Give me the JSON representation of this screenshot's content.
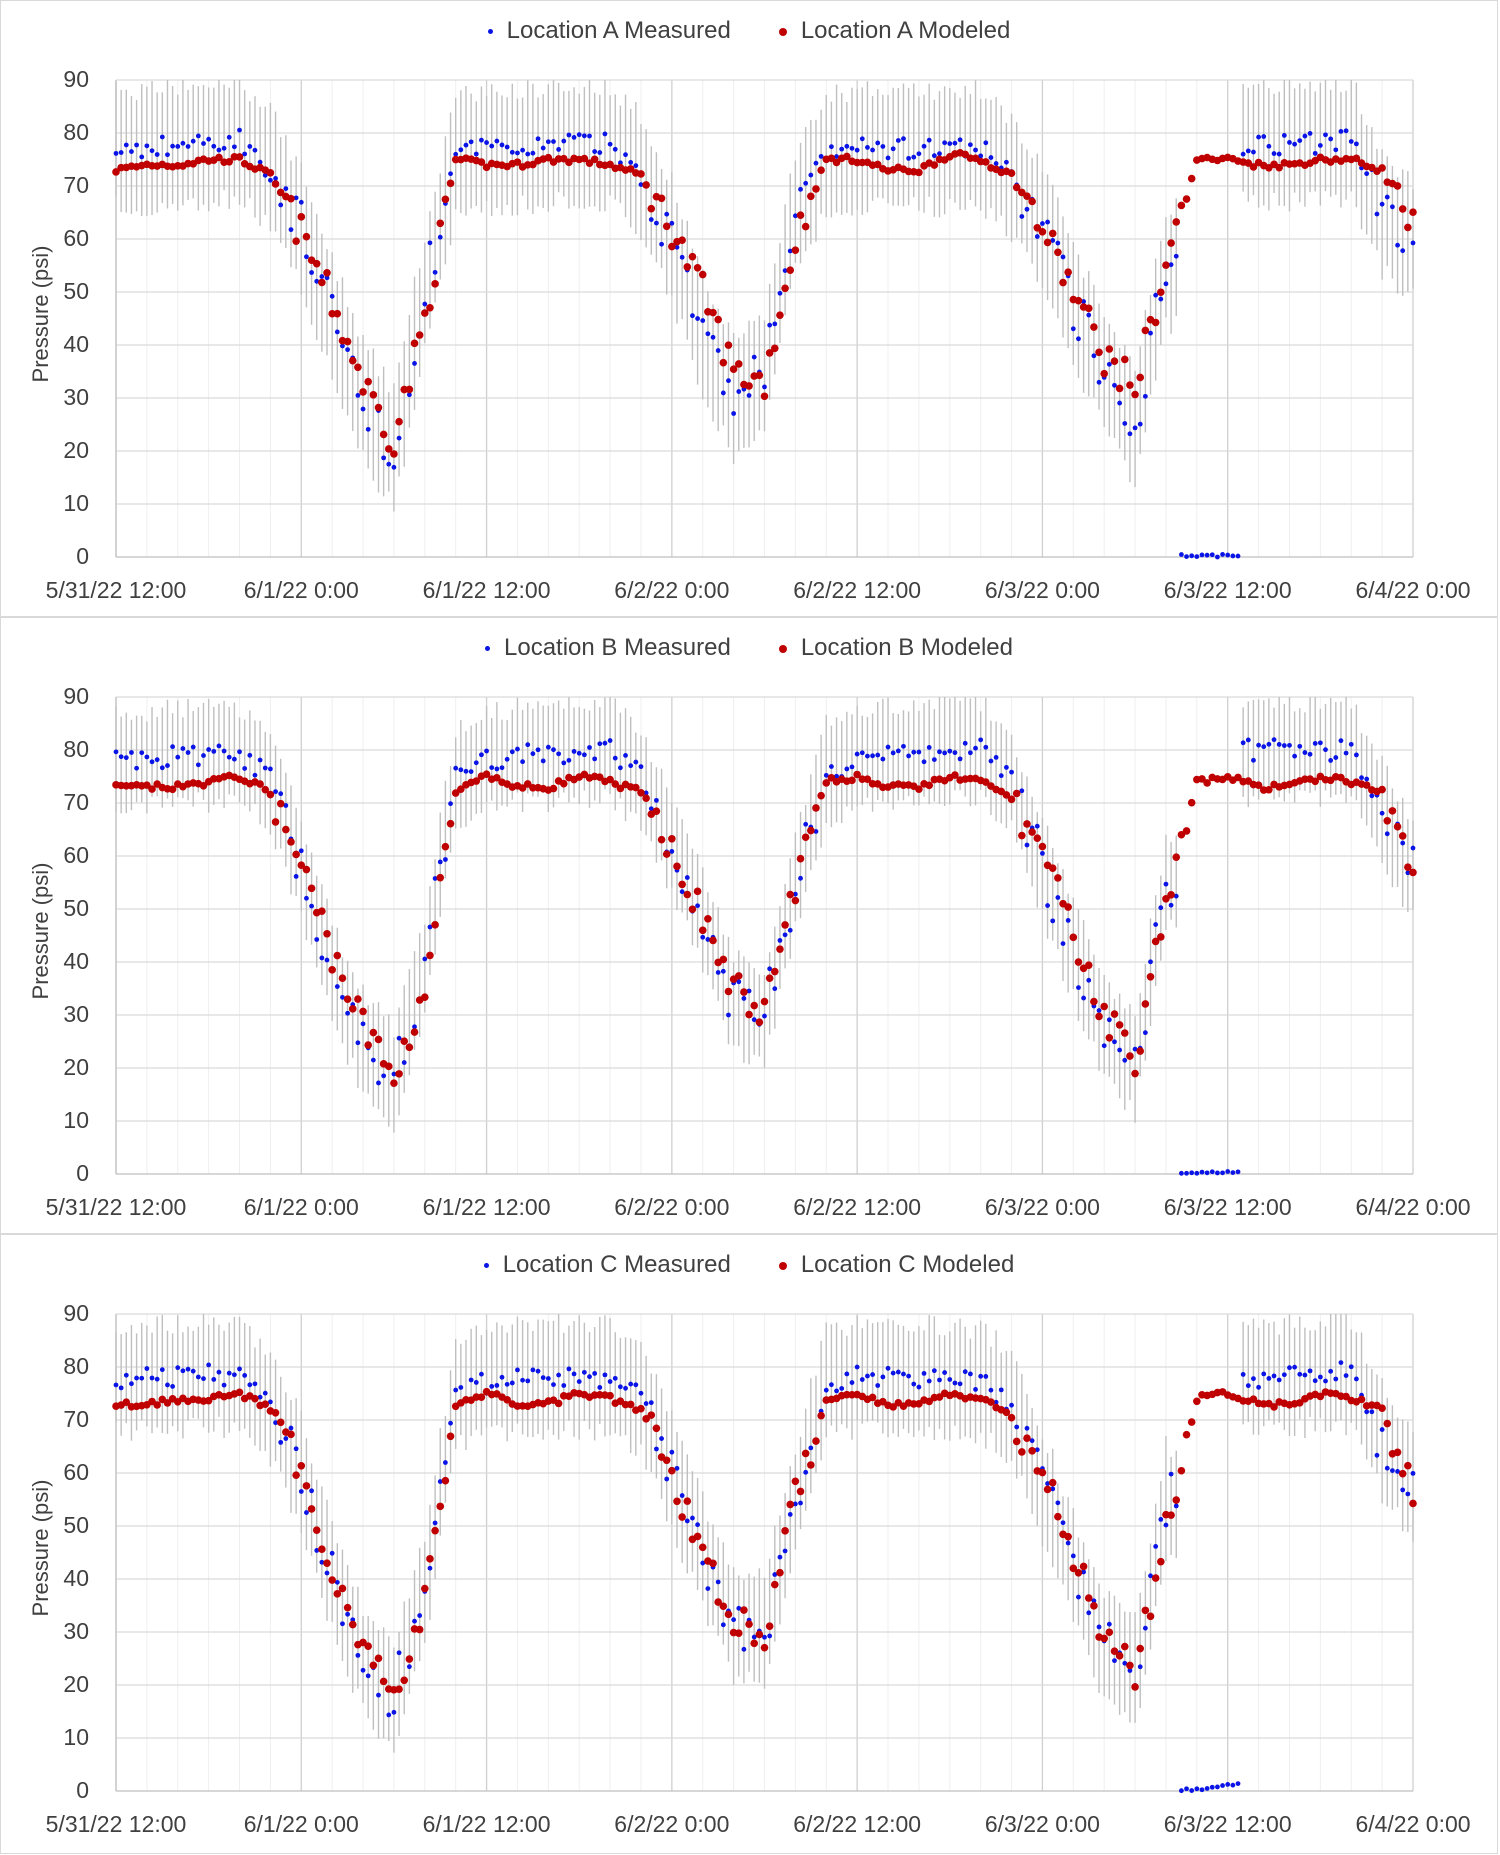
{
  "chart_data": [
    {
      "type": "scatter",
      "legend": [
        "Location A Measured",
        "Location A Modeled"
      ],
      "ylabel": "Pressure (psi)",
      "ylim": [
        0,
        90
      ],
      "yticks": [
        "0",
        "10",
        "20",
        "30",
        "40",
        "50",
        "60",
        "70",
        "80",
        "90"
      ],
      "xticks": [
        "5/31/22 12:00",
        "6/1/22 0:00",
        "6/1/22 12:00",
        "6/2/22 0:00",
        "6/2/22 12:00",
        "6/3/22 0:00",
        "6/3/22 12:00",
        "6/4/22 0:00"
      ],
      "x_hours_from_start": [
        0,
        2,
        4,
        6,
        8,
        10,
        12,
        14,
        16,
        18,
        20,
        22,
        24,
        26,
        28,
        30,
        32,
        34,
        36,
        38,
        40,
        42,
        44,
        46,
        48,
        50,
        52,
        54,
        56,
        58,
        60,
        62,
        64,
        66,
        68,
        70,
        72,
        74,
        76,
        78,
        80,
        82,
        84
      ],
      "measured": [
        77,
        77,
        78,
        78,
        79,
        73,
        62,
        45,
        30,
        20,
        50,
        76,
        77,
        77,
        78,
        78,
        78,
        72,
        60,
        42,
        30,
        35,
        65,
        76,
        77,
        77,
        77,
        77,
        77,
        72,
        62,
        48,
        35,
        25,
        55,
        0,
        0,
        78,
        78,
        78,
        79,
        65,
        60
      ],
      "modeled": [
        73,
        74,
        74,
        75,
        75,
        72,
        61,
        48,
        33,
        22,
        45,
        75,
        74,
        74,
        75,
        75,
        74,
        72,
        62,
        50,
        35,
        33,
        60,
        75,
        75,
        73,
        73,
        76,
        75,
        72,
        62,
        50,
        38,
        32,
        55,
        75,
        75,
        74,
        74,
        75,
        75,
        73,
        62
      ],
      "measured_range_halfwidth": 9,
      "grid": true,
      "legend_position": "top"
    },
    {
      "type": "scatter",
      "legend": [
        "Location B Measured",
        "Location B Modeled"
      ],
      "ylabel": "Pressure (psi)",
      "ylim": [
        0,
        90
      ],
      "yticks": [
        "0",
        "10",
        "20",
        "30",
        "40",
        "50",
        "60",
        "70",
        "80",
        "90"
      ],
      "xticks": [
        "5/31/22 12:00",
        "6/1/22 0:00",
        "6/1/22 12:00",
        "6/2/22 0:00",
        "6/2/22 12:00",
        "6/3/22 0:00",
        "6/3/22 12:00",
        "6/4/22 0:00"
      ],
      "x_hours_from_start": [
        0,
        2,
        4,
        6,
        8,
        10,
        12,
        14,
        16,
        18,
        20,
        22,
        24,
        26,
        28,
        30,
        32,
        34,
        36,
        38,
        40,
        42,
        44,
        46,
        48,
        50,
        52,
        54,
        56,
        58,
        60,
        62,
        64,
        66,
        68,
        70,
        72,
        74,
        76,
        78,
        80,
        82,
        84
      ],
      "measured": [
        78,
        78,
        79,
        79,
        79,
        75,
        58,
        38,
        25,
        18,
        40,
        75,
        78,
        79,
        79,
        80,
        80,
        75,
        62,
        48,
        32,
        30,
        55,
        76,
        78,
        79,
        79,
        80,
        80,
        74,
        58,
        42,
        28,
        20,
        55,
        0,
        0,
        80,
        80,
        80,
        80,
        68,
        58
      ],
      "modeled": [
        73,
        73,
        73,
        74,
        75,
        72,
        58,
        42,
        28,
        18,
        35,
        72,
        75,
        73,
        73,
        75,
        74,
        72,
        62,
        48,
        35,
        30,
        55,
        74,
        75,
        73,
        73,
        75,
        74,
        71,
        60,
        45,
        30,
        22,
        50,
        74,
        75,
        73,
        73,
        75,
        74,
        72,
        57
      ],
      "measured_range_halfwidth": 7,
      "grid": true,
      "legend_position": "top"
    },
    {
      "type": "scatter",
      "legend": [
        "Location C Measured",
        "Location C Modeled"
      ],
      "ylabel": "Pressure (psi)",
      "ylim": [
        0,
        90
      ],
      "yticks": [
        "0",
        "10",
        "20",
        "30",
        "40",
        "50",
        "60",
        "70",
        "80",
        "90"
      ],
      "xticks": [
        "5/31/22 12:00",
        "6/1/22 0:00",
        "6/1/22 12:00",
        "6/2/22 0:00",
        "6/2/22 12:00",
        "6/3/22 0:00",
        "6/3/22 12:00",
        "6/4/22 0:00"
      ],
      "x_hours_from_start": [
        0,
        2,
        4,
        6,
        8,
        10,
        12,
        14,
        16,
        18,
        20,
        22,
        24,
        26,
        28,
        30,
        32,
        34,
        36,
        38,
        40,
        42,
        44,
        46,
        48,
        50,
        52,
        54,
        56,
        58,
        60,
        62,
        64,
        66,
        68,
        70,
        72,
        74,
        76,
        78,
        80,
        82,
        84
      ],
      "measured": [
        78,
        78,
        78,
        79,
        78,
        73,
        60,
        40,
        25,
        18,
        38,
        75,
        77,
        78,
        78,
        78,
        78,
        74,
        60,
        45,
        32,
        30,
        55,
        77,
        78,
        78,
        78,
        78,
        77,
        73,
        58,
        42,
        28,
        22,
        55,
        0,
        1,
        78,
        78,
        79,
        79,
        66,
        58
      ],
      "modeled": [
        73,
        73,
        74,
        74,
        75,
        72,
        60,
        42,
        28,
        17,
        35,
        73,
        75,
        73,
        73,
        75,
        74,
        72,
        60,
        45,
        32,
        30,
        55,
        74,
        75,
        73,
        73,
        75,
        74,
        71,
        60,
        45,
        30,
        22,
        50,
        74,
        75,
        73,
        73,
        75,
        74,
        72,
        57
      ],
      "measured_range_halfwidth": 8,
      "grid": true,
      "legend_position": "top"
    }
  ],
  "colors": {
    "measured": "#0a14e6",
    "modeled": "#c00000",
    "range": "#bfbfbf",
    "grid": "#d9d9d9"
  }
}
